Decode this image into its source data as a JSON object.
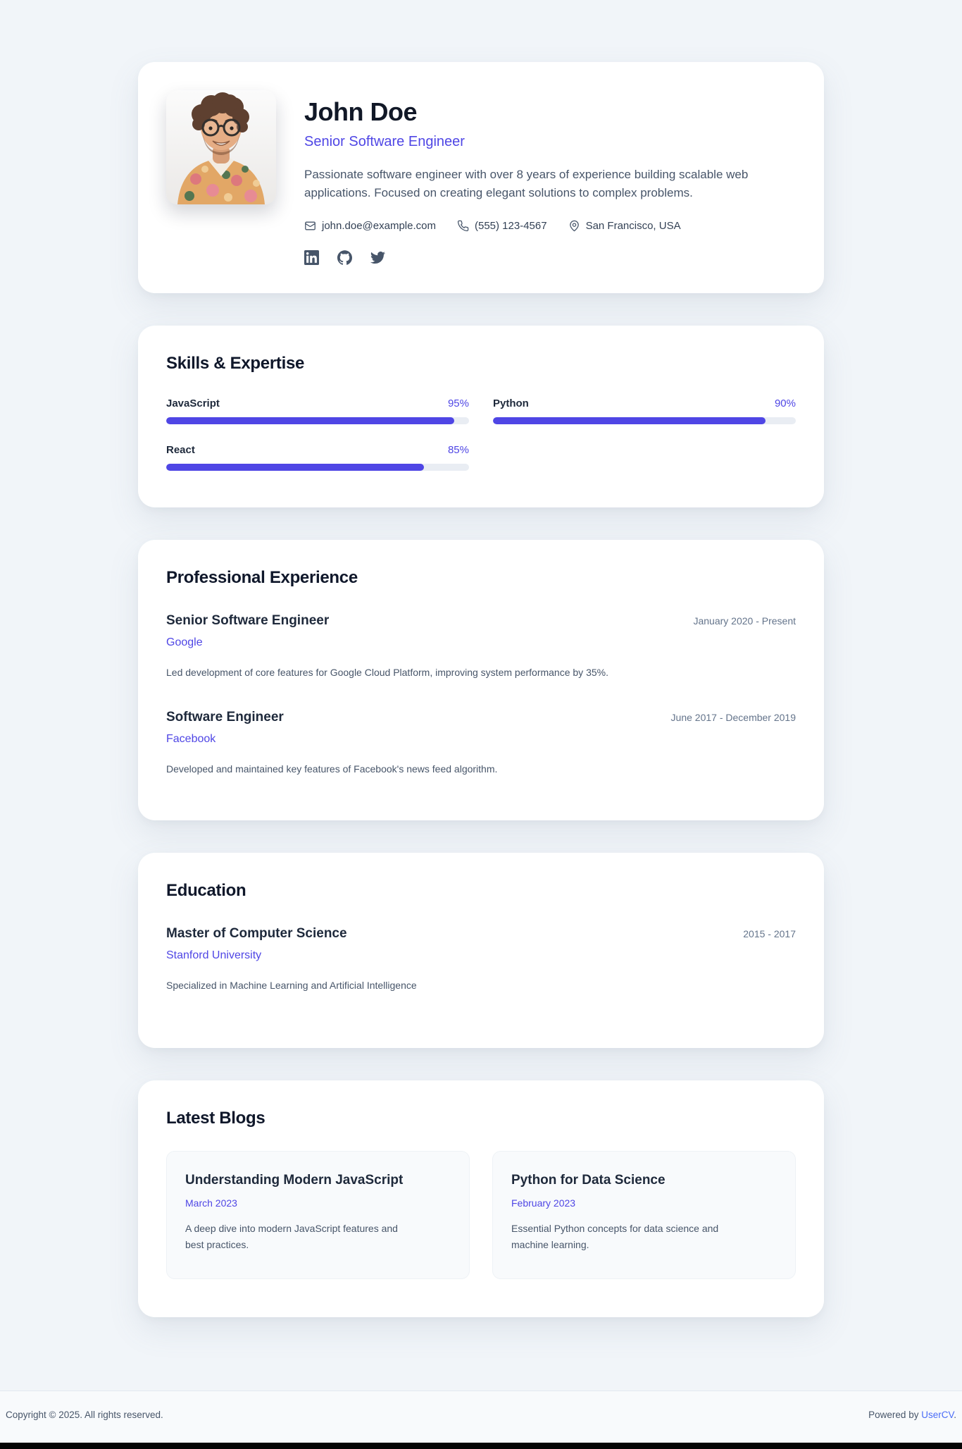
{
  "page": {
    "background": "#f1f5f9",
    "accent": "#4f46e5"
  },
  "profile": {
    "name": "John Doe",
    "title": "Senior Software Engineer",
    "bio": "Passionate software engineer with over 8 years of experience building scalable web applications. Focused on creating elegant solutions to complex problems.",
    "contact": {
      "email": "john.doe@example.com",
      "phone": "(555) 123-4567",
      "location": "San Francisco, USA"
    },
    "social": [
      {
        "name": "linkedin"
      },
      {
        "name": "github"
      },
      {
        "name": "twitter"
      }
    ]
  },
  "skills": {
    "heading": "Skills & Expertise",
    "items": [
      {
        "name": "JavaScript",
        "percent": "95%",
        "value": 95
      },
      {
        "name": "Python",
        "percent": "90%",
        "value": 90
      },
      {
        "name": "React",
        "percent": "85%",
        "value": 85
      }
    ]
  },
  "experience": {
    "heading": "Professional Experience",
    "items": [
      {
        "title": "Senior Software Engineer",
        "company": "Google",
        "period": "January 2020 - Present",
        "description": "Led development of core features for Google Cloud Platform, improving system performance by 35%."
      },
      {
        "title": "Software Engineer",
        "company": "Facebook",
        "period": "June 2017 - December 2019",
        "description": "Developed and maintained key features of Facebook's news feed algorithm."
      }
    ]
  },
  "education": {
    "heading": "Education",
    "items": [
      {
        "degree": "Master of Computer Science",
        "school": "Stanford University",
        "period": "2015 - 2017",
        "description": "Specialized in Machine Learning and Artificial Intelligence"
      }
    ]
  },
  "blogs": {
    "heading": "Latest Blogs",
    "items": [
      {
        "title": "Understanding Modern JavaScript",
        "date": "March 2023",
        "description": "A deep dive into modern JavaScript features and best practices."
      },
      {
        "title": "Python for Data Science",
        "date": "February 2023",
        "description": "Essential Python concepts for data science and machine learning."
      }
    ]
  },
  "footer": {
    "copyright": "Copyright © 2025. All rights reserved.",
    "powered_prefix": "Powered by",
    "powered_link": "UserCV",
    "powered_suffix": "."
  }
}
